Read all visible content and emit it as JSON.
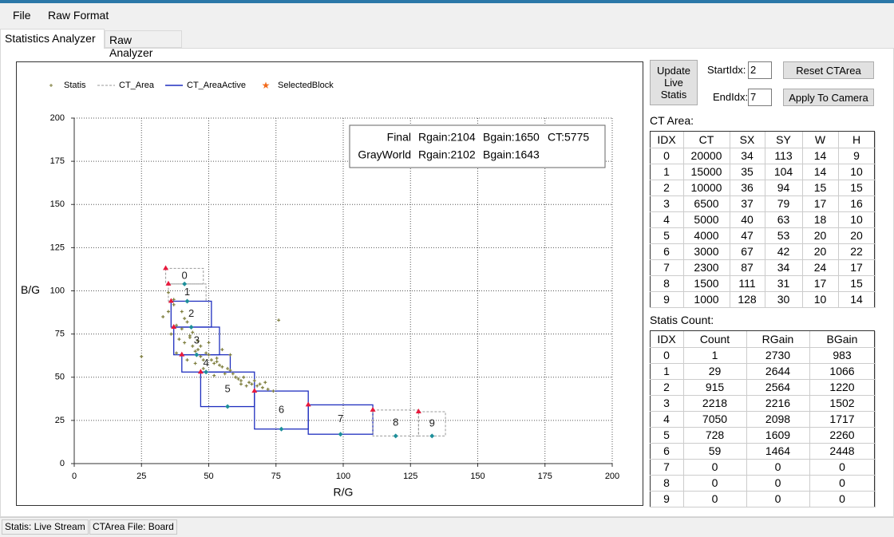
{
  "menu": [
    "File",
    "Raw Format"
  ],
  "tabs": [
    "Statistics Analyzer",
    "Raw Analyzer"
  ],
  "chart_data": {
    "type": "scatter",
    "x_label": "R/G",
    "y_label": "B/G",
    "xlim": [
      0,
      200
    ],
    "xticks": [
      0,
      25,
      50,
      75,
      100,
      125,
      150,
      175,
      200
    ],
    "ylim": [
      0,
      200
    ],
    "yticks": [
      0,
      25,
      50,
      75,
      100,
      125,
      150,
      175,
      200
    ],
    "grid": true,
    "series": [
      {
        "name": "Statis",
        "color": "#7d7d3c",
        "x": [
          25,
          33,
          35,
          37,
          38,
          40,
          36,
          39,
          41,
          43,
          42,
          44,
          45,
          46,
          47,
          48,
          44,
          46,
          50,
          52,
          49,
          51,
          53,
          55,
          54,
          56,
          57,
          58,
          60,
          59,
          61,
          62,
          63,
          65,
          64,
          66,
          68,
          70,
          72,
          74,
          71,
          69,
          67,
          45,
          42,
          38,
          40,
          55,
          58,
          76,
          48,
          52,
          47,
          62,
          35,
          37,
          41,
          43,
          50,
          53
        ],
        "values": [
          62,
          85,
          88,
          92,
          80,
          78,
          75,
          72,
          70,
          74,
          82,
          68,
          65,
          66,
          62,
          60,
          76,
          71,
          63,
          58,
          64,
          60,
          59,
          56,
          57,
          52,
          55,
          54,
          50,
          52,
          49,
          48,
          50,
          47,
          45,
          46,
          45,
          44,
          43,
          42,
          47,
          46,
          48,
          58,
          60,
          64,
          88,
          66,
          63,
          83,
          55,
          51,
          68,
          46,
          99,
          95,
          84,
          73,
          70,
          61
        ]
      }
    ],
    "overlays": [
      {
        "name": "CT_Area",
        "color": "#999999"
      },
      {
        "name": "CT_AreaActive",
        "color": "#1f2fbf"
      },
      {
        "name": "SelectedBlock",
        "color": "#f26a1b"
      }
    ],
    "info_box": [
      [
        "Final",
        "Rgain:2104",
        "Bgain:1650",
        "CT:5775"
      ],
      [
        "GrayWorld",
        "Rgain:2102",
        "Bgain:1643"
      ]
    ]
  },
  "controls": {
    "update_button": "Update Live Statis",
    "start_label": "StartIdx:",
    "start_value": 2,
    "end_label": "EndIdx:",
    "end_value": 7,
    "reset_button": "Reset CTArea",
    "apply_button": "Apply To Camera"
  },
  "ct_area": {
    "title": "CT Area:",
    "columns": [
      "IDX",
      "CT",
      "SX",
      "SY",
      "W",
      "H"
    ],
    "rows": [
      [
        0,
        20000,
        34,
        113,
        14,
        9
      ],
      [
        1,
        15000,
        35,
        104,
        14,
        10
      ],
      [
        2,
        10000,
        36,
        94,
        15,
        15
      ],
      [
        3,
        6500,
        37,
        79,
        17,
        16
      ],
      [
        4,
        5000,
        40,
        63,
        18,
        10
      ],
      [
        5,
        4000,
        47,
        53,
        20,
        20
      ],
      [
        6,
        3000,
        67,
        42,
        20,
        22
      ],
      [
        7,
        2300,
        87,
        34,
        24,
        17
      ],
      [
        8,
        1500,
        111,
        31,
        17,
        15
      ],
      [
        9,
        1000,
        128,
        30,
        10,
        14
      ]
    ]
  },
  "statis_count": {
    "title": "Statis Count:",
    "columns": [
      "IDX",
      "Count",
      "RGain",
      "BGain"
    ],
    "rows": [
      [
        0,
        1,
        2730,
        983
      ],
      [
        1,
        29,
        2644,
        1066
      ],
      [
        2,
        915,
        2564,
        1220
      ],
      [
        3,
        2218,
        2216,
        1502
      ],
      [
        4,
        7050,
        2098,
        1717
      ],
      [
        5,
        728,
        1609,
        2260
      ],
      [
        6,
        59,
        1464,
        2448
      ],
      [
        7,
        0,
        0,
        0
      ],
      [
        8,
        0,
        0,
        0
      ],
      [
        9,
        0,
        0,
        0
      ]
    ]
  },
  "status_bar": [
    "Statis: Live Stream",
    "CTArea File: Board"
  ]
}
